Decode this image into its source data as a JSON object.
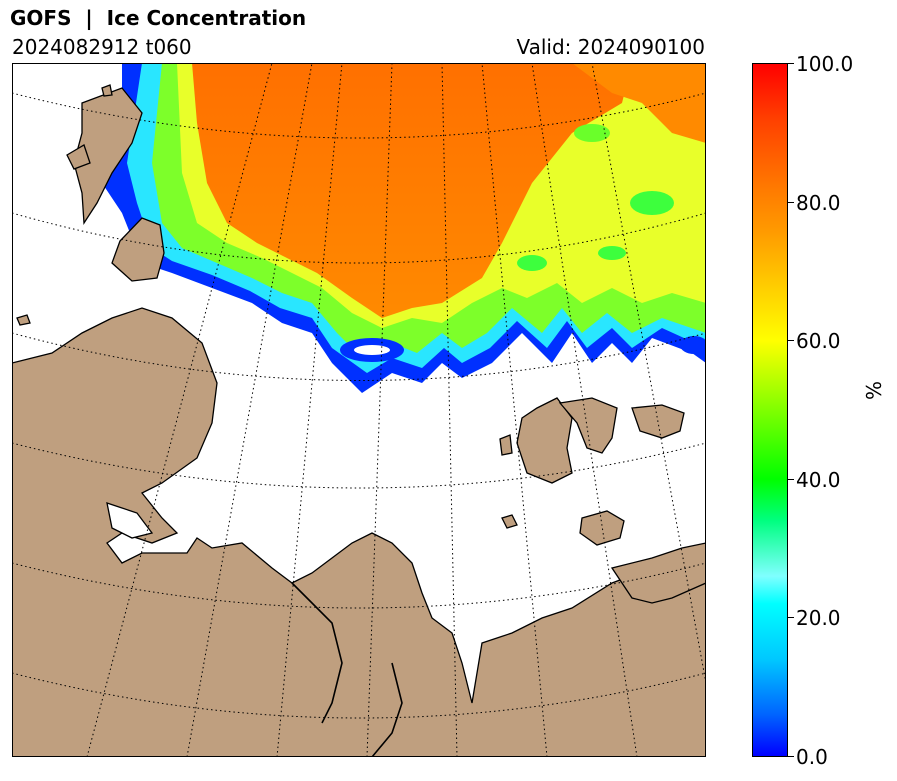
{
  "header": {
    "title": "GOFS  |  Ice Concentration",
    "run": "2024082912 t060",
    "valid": "Valid: 2024090100"
  },
  "colorbar": {
    "label": "%",
    "ticks": [
      "0.0",
      "20.0",
      "40.0",
      "60.0",
      "80.0",
      "100.0"
    ],
    "range": [
      0,
      100
    ],
    "colors": [
      "#0000ff",
      "#00ffff",
      "#00ff00",
      "#ffff00",
      "#ff8c00",
      "#ff0000"
    ]
  },
  "map": {
    "land_color": "#bf9f7f",
    "ocean_color": "#ffffff",
    "graticule": "dotted",
    "layer": "sea ice concentration"
  }
}
